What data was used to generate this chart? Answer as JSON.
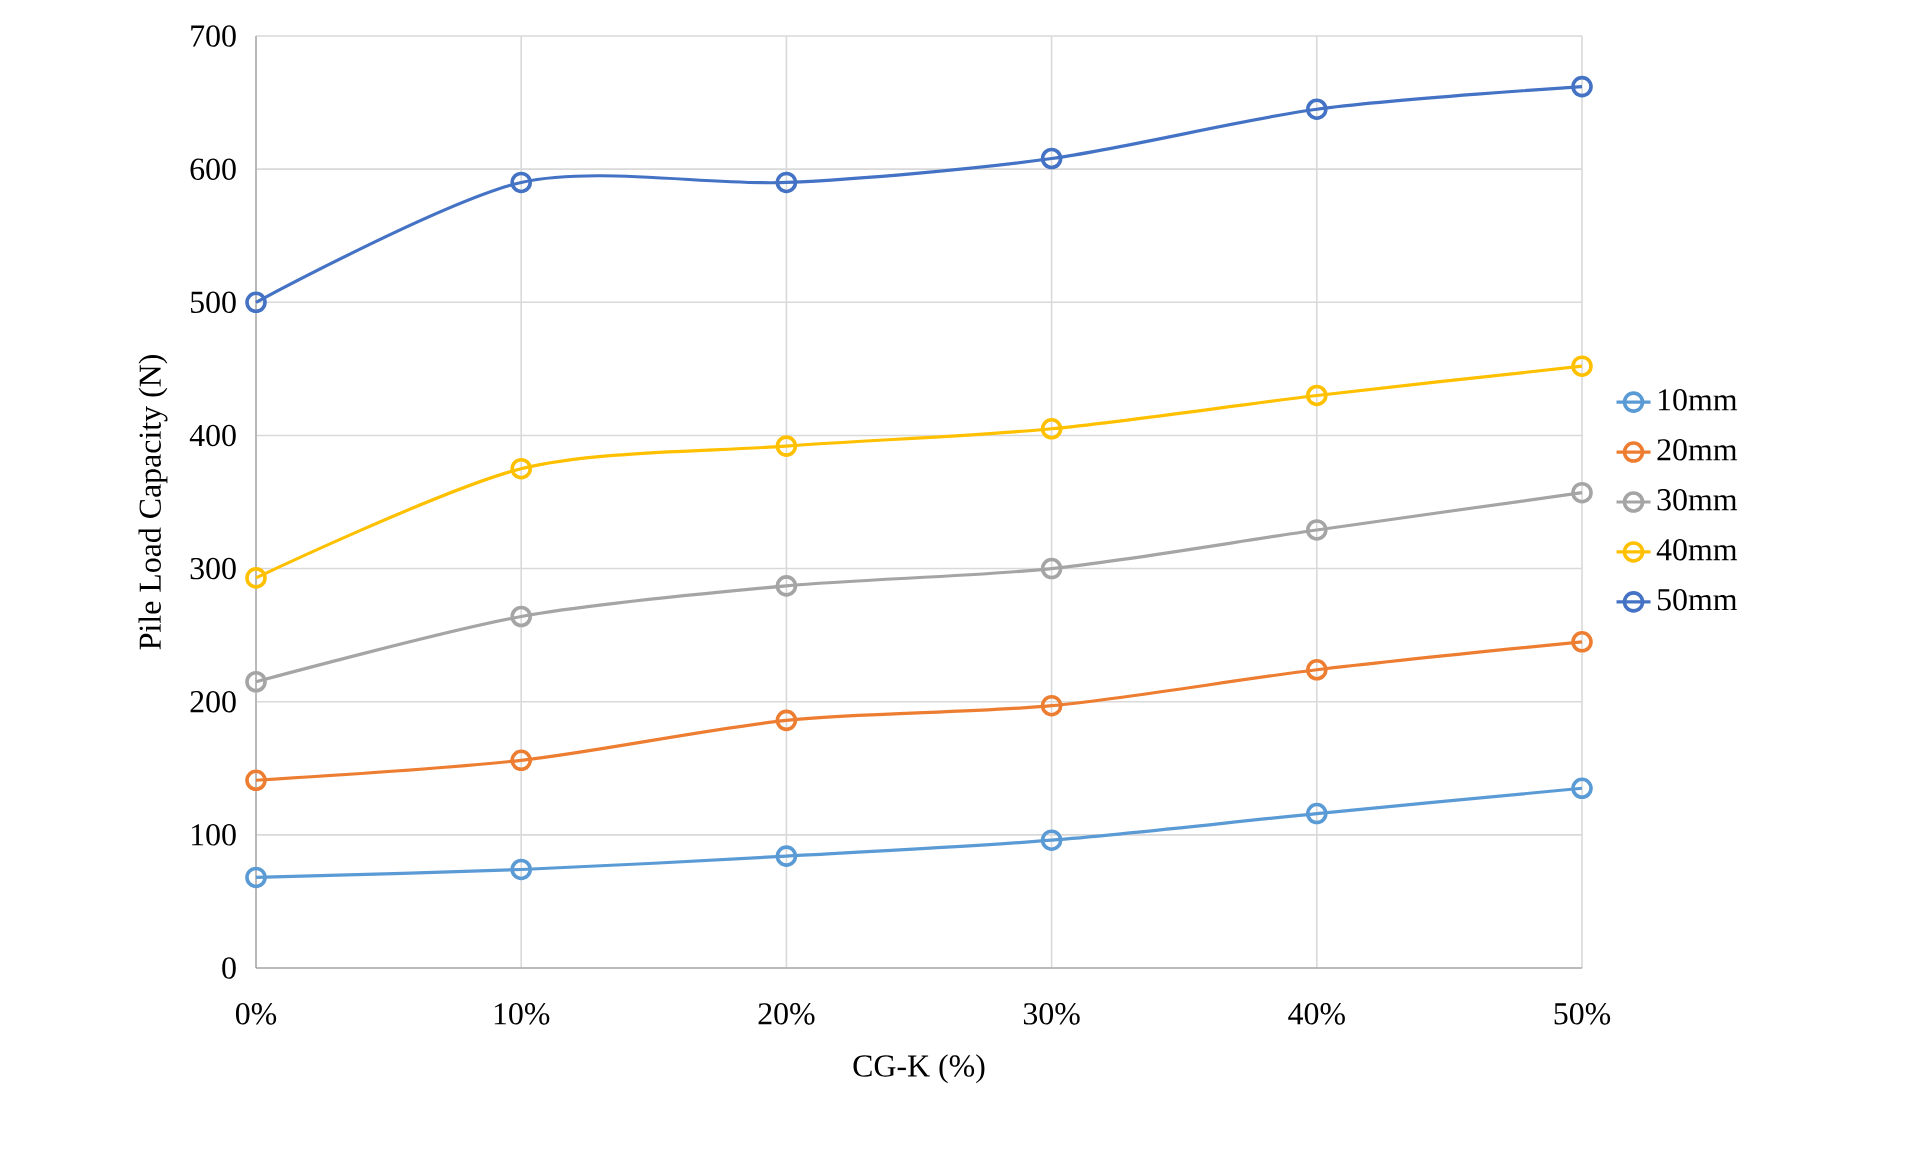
{
  "chart_data": {
    "type": "line",
    "xlabel": "CG-K (%)",
    "ylabel": "Pile Load Capacity (N)",
    "categories": [
      "0%",
      "10%",
      "20%",
      "30%",
      "40%",
      "50%"
    ],
    "series": [
      {
        "name": "10mm",
        "color": "#5b9bd5",
        "values": [
          68,
          74,
          84,
          96,
          116,
          135
        ]
      },
      {
        "name": "20mm",
        "color": "#ed7d31",
        "values": [
          141,
          156,
          186,
          197,
          224,
          245
        ]
      },
      {
        "name": "30mm",
        "color": "#a5a5a5",
        "values": [
          215,
          264,
          287,
          300,
          329,
          357
        ]
      },
      {
        "name": "40mm",
        "color": "#ffc000",
        "values": [
          293,
          375,
          392,
          405,
          430,
          452
        ]
      },
      {
        "name": "50mm",
        "color": "#4472c4",
        "values": [
          500,
          590,
          590,
          608,
          645,
          662
        ]
      }
    ],
    "ylim": [
      0,
      700
    ],
    "yticks": [
      0,
      100,
      200,
      300,
      400,
      500,
      600,
      700
    ],
    "grid": true,
    "legend": "right",
    "marker": "circle",
    "line_style": "solid"
  }
}
